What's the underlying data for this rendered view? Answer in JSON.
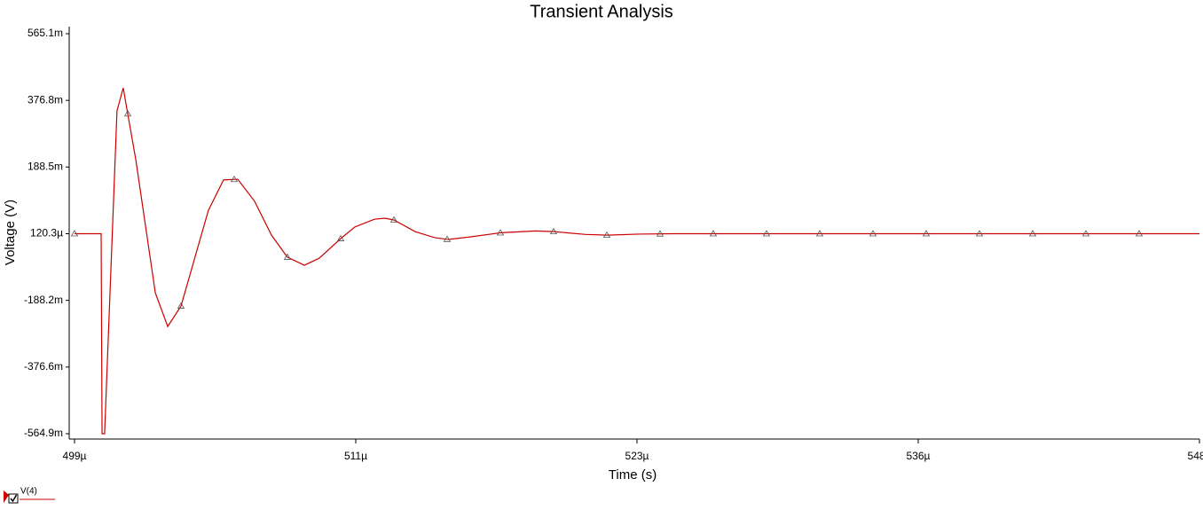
{
  "chart_data": {
    "type": "line",
    "title": "Transient Analysis",
    "x_label": "Time (s)",
    "y_label": "Voltage (V)",
    "x": [
      0.000499,
      0.00050016,
      0.0005002,
      0.00050031,
      0.00050085,
      0.00050112,
      0.00050167,
      0.00050252,
      0.00050306,
      0.00050364,
      0.00050483,
      0.00050549,
      0.00050611,
      0.00050684,
      0.00050758,
      0.00050827,
      0.00050901,
      0.00050966,
      0.00051059,
      0.00051121,
      0.00051206,
      0.00051252,
      0.00051291,
      0.00051384,
      0.00051469,
      0.00051527,
      0.00051623,
      0.00051759,
      0.00051909,
      0.00051987,
      0.00052126,
      0.00052222,
      0.00052357,
      0.00052512,
      0.000548
    ],
    "series": [
      {
        "name": "V(4)",
        "color": "#cc0000",
        "marker": "triangle",
        "values": [
          0.00012,
          0.00012,
          -0.5649,
          -0.5649,
          0.347,
          0.412,
          0.209,
          -0.167,
          -0.262,
          -0.204,
          0.066,
          0.152,
          0.154,
          0.092,
          -0.004,
          -0.066,
          -0.089,
          -0.069,
          -0.014,
          0.019,
          0.041,
          0.044,
          0.039,
          0.006,
          -0.011,
          -0.016,
          -0.009,
          0.003,
          0.008,
          0.006,
          -0.002,
          -0.004,
          -0.001,
          0.00012,
          0.00012
        ]
      }
    ],
    "xlim": [
      0.000499,
      0.000548
    ],
    "xticks": [
      {
        "value": 0.000499,
        "label": "499µ"
      },
      {
        "value": 0.00051125,
        "label": "511µ"
      },
      {
        "value": 0.0005235,
        "label": "523µ"
      },
      {
        "value": 0.00053575,
        "label": "536µ"
      },
      {
        "value": 0.000548,
        "label": "548µ"
      }
    ],
    "ylim": [
      -0.5649,
      0.5651
    ],
    "yticks": [
      {
        "value": 0.5651,
        "label": "565.1m"
      },
      {
        "value": 0.3768,
        "label": "376.8m"
      },
      {
        "value": 0.1885,
        "label": "188.5m"
      },
      {
        "value": 0.0001203,
        "label": "120.3µ"
      },
      {
        "value": -0.1882,
        "label": "-188.2m"
      },
      {
        "value": -0.3766,
        "label": "-376.6m"
      },
      {
        "value": -0.5649,
        "label": "-564.9m"
      }
    ],
    "grid": false
  }
}
